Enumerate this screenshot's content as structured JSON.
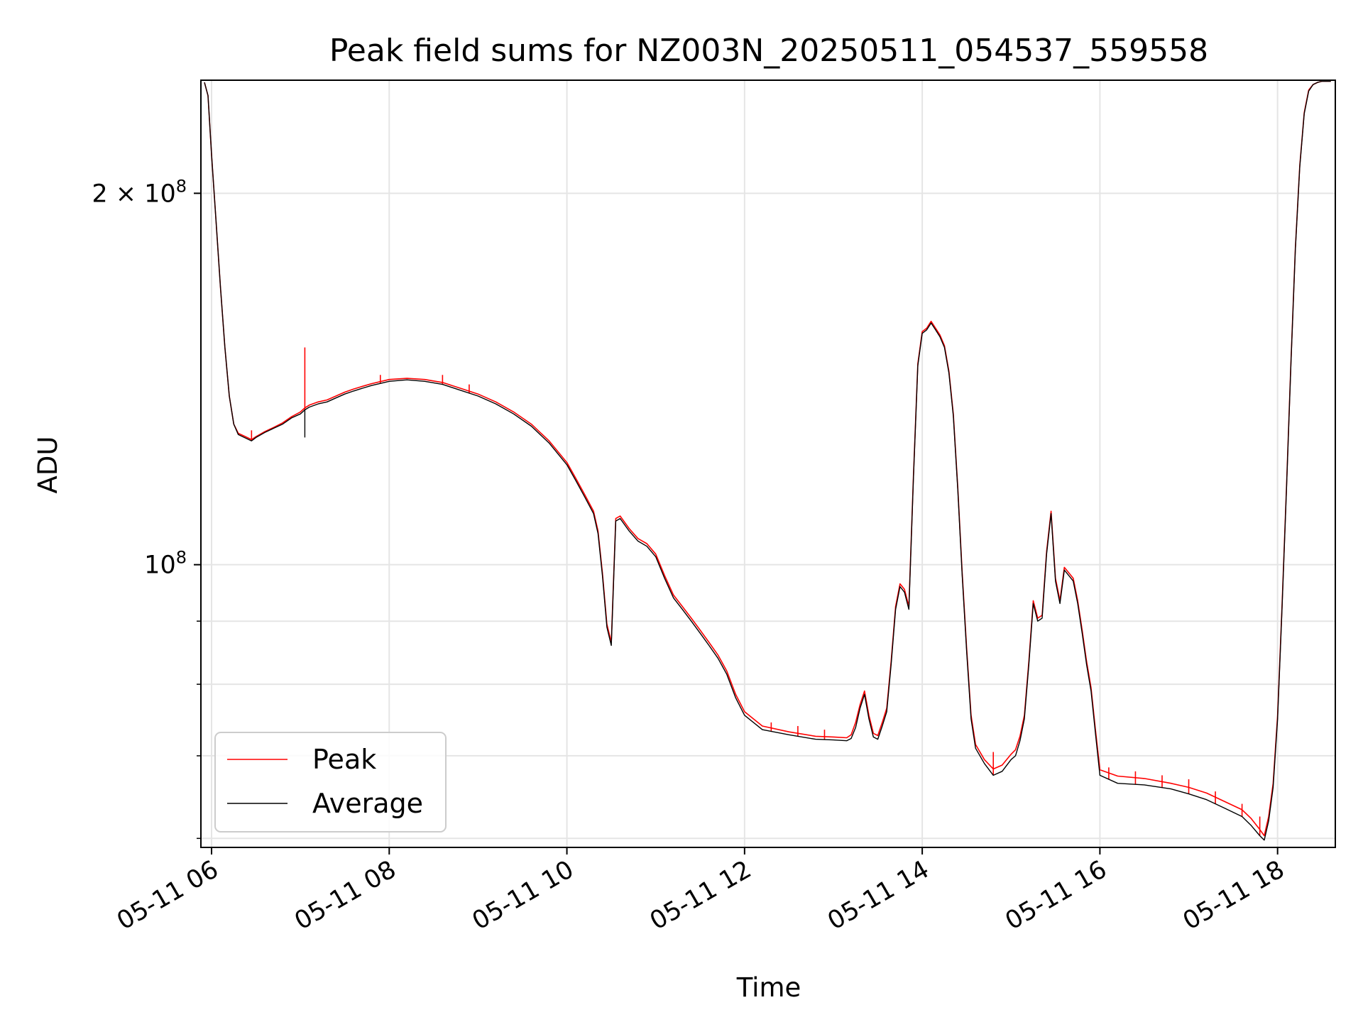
{
  "chart_data": {
    "type": "line",
    "title": "Peak field sums for NZ003N_20250511_054537_559558",
    "xlabel": "Time",
    "ylabel": "ADU",
    "y_scale": "log",
    "x_unit": "hours (2025-05-11)",
    "xlim": [
      5.88,
      18.65
    ],
    "ylim": [
      59000000,
      247000000
    ],
    "grid": true,
    "legend_position": "lower-left",
    "x_ticks": [
      {
        "value": 6,
        "label": "05-11 06"
      },
      {
        "value": 8,
        "label": "05-11 08"
      },
      {
        "value": 10,
        "label": "05-11 10"
      },
      {
        "value": 12,
        "label": "05-11 12"
      },
      {
        "value": 14,
        "label": "05-11 14"
      },
      {
        "value": 16,
        "label": "05-11 16"
      },
      {
        "value": 18,
        "label": "05-11 18"
      }
    ],
    "y_ticks": [
      {
        "value": 100000000,
        "base": "10",
        "exp": "8",
        "coef": ""
      },
      {
        "value": 200000000,
        "base": "10",
        "exp": "8",
        "coef": "2"
      }
    ],
    "y_minor_ticks": [
      60000000,
      70000000,
      80000000,
      90000000
    ],
    "series": [
      {
        "name": "Average",
        "color": "#000000",
        "x": [
          5.92,
          5.96,
          6.0,
          6.05,
          6.1,
          6.15,
          6.2,
          6.25,
          6.3,
          6.35,
          6.4,
          6.45,
          6.5,
          6.6,
          6.7,
          6.8,
          6.9,
          7.0,
          7.05,
          7.1,
          7.2,
          7.3,
          7.4,
          7.5,
          7.6,
          7.7,
          7.8,
          8.0,
          8.2,
          8.4,
          8.6,
          8.8,
          9.0,
          9.2,
          9.4,
          9.6,
          9.8,
          10.0,
          10.1,
          10.2,
          10.3,
          10.35,
          10.4,
          10.45,
          10.5,
          10.55,
          10.6,
          10.7,
          10.8,
          10.9,
          11.0,
          11.1,
          11.2,
          11.3,
          11.4,
          11.5,
          11.6,
          11.7,
          11.8,
          11.9,
          12.0,
          12.2,
          12.5,
          12.8,
          13.0,
          13.15,
          13.2,
          13.25,
          13.3,
          13.35,
          13.4,
          13.45,
          13.5,
          13.55,
          13.6,
          13.65,
          13.7,
          13.75,
          13.8,
          13.85,
          13.9,
          13.95,
          14.0,
          14.05,
          14.1,
          14.15,
          14.2,
          14.25,
          14.3,
          14.35,
          14.4,
          14.45,
          14.5,
          14.55,
          14.6,
          14.7,
          14.8,
          14.9,
          15.0,
          15.05,
          15.1,
          15.15,
          15.2,
          15.25,
          15.3,
          15.35,
          15.4,
          15.45,
          15.5,
          15.55,
          15.6,
          15.65,
          15.7,
          15.75,
          15.8,
          15.85,
          15.9,
          15.95,
          16.0,
          16.2,
          16.5,
          16.8,
          17.0,
          17.2,
          17.4,
          17.6,
          17.7,
          17.8,
          17.85,
          17.9,
          17.95,
          18.0,
          18.05,
          18.1,
          18.15,
          18.2,
          18.25,
          18.3,
          18.35,
          18.4,
          18.45,
          18.5,
          18.55,
          18.6
        ],
        "values": [
          246000000,
          240000000,
          215000000,
          190000000,
          168000000,
          150000000,
          137000000,
          130000000,
          127500000,
          127000000,
          126500000,
          126000000,
          126800000,
          128000000,
          129000000,
          130000000,
          131500000,
          132500000,
          133500000,
          134200000,
          135000000,
          135500000,
          136500000,
          137500000,
          138300000,
          139000000,
          139700000,
          140800000,
          141200000,
          140800000,
          140000000,
          138500000,
          137000000,
          135000000,
          132500000,
          129500000,
          125500000,
          120500000,
          117000000,
          113500000,
          110000000,
          106000000,
          98000000,
          89000000,
          86000000,
          108500000,
          109000000,
          106500000,
          104500000,
          103500000,
          101500000,
          97500000,
          94000000,
          92000000,
          90000000,
          88000000,
          86000000,
          84000000,
          81500000,
          78000000,
          75500000,
          73500000,
          72800000,
          72200000,
          72100000,
          72000000,
          72300000,
          73800000,
          76500000,
          78500000,
          75000000,
          72500000,
          72200000,
          74000000,
          76000000,
          83000000,
          92000000,
          96000000,
          95000000,
          92000000,
          117000000,
          145000000,
          154000000,
          155000000,
          157000000,
          155000000,
          153000000,
          150000000,
          143000000,
          132000000,
          115000000,
          98000000,
          85000000,
          75000000,
          71000000,
          69000000,
          67500000,
          68000000,
          69500000,
          70000000,
          72000000,
          75000000,
          83000000,
          93000000,
          90000000,
          90500000,
          102000000,
          110000000,
          97000000,
          93000000,
          99000000,
          98000000,
          97000000,
          93000000,
          88000000,
          83000000,
          79000000,
          73000000,
          67500000,
          66500000,
          66300000,
          65800000,
          65200000,
          64500000,
          63500000,
          62500000,
          61500000,
          60300000,
          59800000,
          62000000,
          66000000,
          75000000,
          92000000,
          115000000,
          145000000,
          180000000,
          210000000,
          232000000,
          242000000,
          245000000,
          246000000,
          246500000,
          246500000,
          246500000
        ]
      },
      {
        "name": "Peak",
        "color": "#ff0000",
        "x": [
          5.92,
          5.96,
          6.0,
          6.05,
          6.1,
          6.15,
          6.2,
          6.25,
          6.3,
          6.35,
          6.4,
          6.45,
          6.5,
          6.6,
          6.7,
          6.8,
          6.9,
          7.0,
          7.05,
          7.1,
          7.2,
          7.3,
          7.4,
          7.5,
          7.6,
          7.7,
          7.8,
          8.0,
          8.2,
          8.4,
          8.6,
          8.8,
          9.0,
          9.2,
          9.4,
          9.6,
          9.8,
          10.0,
          10.1,
          10.2,
          10.3,
          10.35,
          10.4,
          10.45,
          10.5,
          10.55,
          10.6,
          10.7,
          10.8,
          10.9,
          11.0,
          11.1,
          11.2,
          11.3,
          11.4,
          11.5,
          11.6,
          11.7,
          11.8,
          11.9,
          12.0,
          12.2,
          12.5,
          12.8,
          13.0,
          13.15,
          13.2,
          13.25,
          13.3,
          13.35,
          13.4,
          13.45,
          13.5,
          13.55,
          13.6,
          13.65,
          13.7,
          13.75,
          13.8,
          13.85,
          13.9,
          13.95,
          14.0,
          14.05,
          14.1,
          14.15,
          14.2,
          14.25,
          14.3,
          14.35,
          14.4,
          14.45,
          14.5,
          14.55,
          14.6,
          14.7,
          14.8,
          14.9,
          15.0,
          15.05,
          15.1,
          15.15,
          15.2,
          15.25,
          15.3,
          15.35,
          15.4,
          15.45,
          15.5,
          15.55,
          15.6,
          15.65,
          15.7,
          15.75,
          15.8,
          15.85,
          15.9,
          15.95,
          16.0,
          16.2,
          16.5,
          16.8,
          17.0,
          17.2,
          17.4,
          17.6,
          17.7,
          17.8,
          17.85,
          17.9,
          17.95,
          18.0,
          18.05,
          18.1,
          18.15,
          18.2,
          18.25,
          18.3,
          18.35,
          18.4,
          18.45,
          18.5,
          18.55,
          18.6
        ],
        "values": [
          246000000,
          240000000,
          215000000,
          190000000,
          168000000,
          150000000,
          137000000,
          130000000,
          127800000,
          127300000,
          126800000,
          126300000,
          127000000,
          128200000,
          129200000,
          130300000,
          131800000,
          133000000,
          134000000,
          134700000,
          135500000,
          136000000,
          137000000,
          138000000,
          138800000,
          139500000,
          140200000,
          141300000,
          141600000,
          141300000,
          140500000,
          139000000,
          137500000,
          135500000,
          133000000,
          130000000,
          126000000,
          121000000,
          117500000,
          114000000,
          110500000,
          106500000,
          98500000,
          89500000,
          86500000,
          109000000,
          109500000,
          107000000,
          105000000,
          104000000,
          102000000,
          98000000,
          94500000,
          92500000,
          90500000,
          88500000,
          86500000,
          84500000,
          82000000,
          78500000,
          76000000,
          74000000,
          73200000,
          72600000,
          72500000,
          72400000,
          72800000,
          74500000,
          77000000,
          79000000,
          75500000,
          73000000,
          72700000,
          74500000,
          76500000,
          83500000,
          92500000,
          96500000,
          95500000,
          92500000,
          117500000,
          145500000,
          154500000,
          155500000,
          157500000,
          155500000,
          153500000,
          150500000,
          143500000,
          132500000,
          115500000,
          98500000,
          85500000,
          75500000,
          71500000,
          69500000,
          68300000,
          68800000,
          70200000,
          70800000,
          72600000,
          75500000,
          83500000,
          93500000,
          90500000,
          91000000,
          102500000,
          110500000,
          97500000,
          93500000,
          99500000,
          98500000,
          97500000,
          93500000,
          88500000,
          83500000,
          79500000,
          73500000,
          68200000,
          67400000,
          67100000,
          66500000,
          66000000,
          65300000,
          64300000,
          63300000,
          62300000,
          61000000,
          60300000,
          62500000,
          66500000,
          75500000,
          92500000,
          115500000,
          145500000,
          180500000,
          210500000,
          232500000,
          242500000,
          245000000,
          246000000,
          246500000,
          246500000,
          246500000
        ]
      }
    ],
    "peak_spikes": [
      {
        "x": 6.45,
        "value": 128500000
      },
      {
        "x": 7.05,
        "value": 150000000
      },
      {
        "x": 7.9,
        "value": 142500000
      },
      {
        "x": 8.6,
        "value": 142500000
      },
      {
        "x": 8.9,
        "value": 140000000
      },
      {
        "x": 12.3,
        "value": 74500000
      },
      {
        "x": 12.6,
        "value": 74000000
      },
      {
        "x": 12.9,
        "value": 73500000
      },
      {
        "x": 14.8,
        "value": 70500000
      },
      {
        "x": 16.1,
        "value": 68500000
      },
      {
        "x": 16.4,
        "value": 68000000
      },
      {
        "x": 16.7,
        "value": 67500000
      },
      {
        "x": 17.0,
        "value": 67000000
      },
      {
        "x": 17.3,
        "value": 65500000
      },
      {
        "x": 17.6,
        "value": 64000000
      },
      {
        "x": 17.8,
        "value": 62500000
      }
    ],
    "average_dips": [
      {
        "x": 7.05,
        "value": 126800000
      }
    ]
  }
}
